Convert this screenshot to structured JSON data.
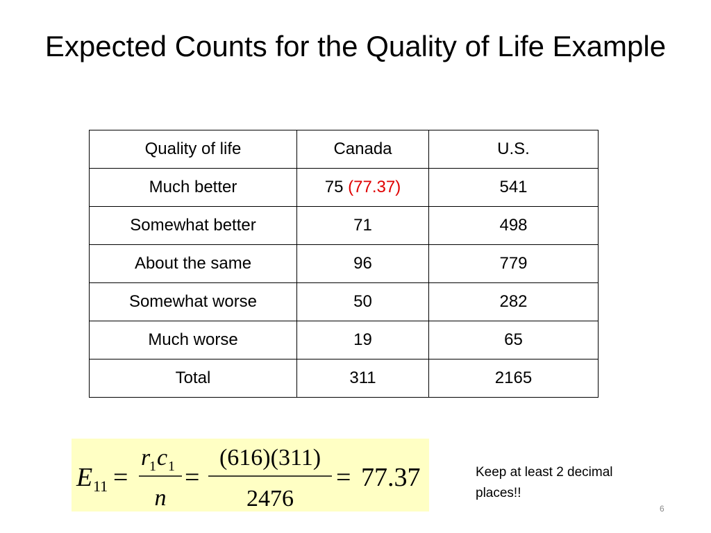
{
  "title": "Expected Counts for the Quality of Life Example",
  "table": {
    "header": [
      "Quality of life",
      "Canada",
      "U.S."
    ],
    "rows": [
      [
        {
          "count": "75",
          "expected": "(77.37)"
        },
        "541"
      ],
      [
        "71",
        "498"
      ],
      [
        "96",
        "779"
      ],
      [
        "50",
        "282"
      ],
      [
        "19",
        "65"
      ],
      [
        "311",
        "2165"
      ]
    ],
    "row_labels": [
      "Much better",
      "Somewhat better",
      "About the same",
      "Somewhat worse",
      "Much worse",
      "Total"
    ]
  },
  "formula": {
    "symbol": "E",
    "subscript": "11",
    "equals": "=",
    "r": "r",
    "r_sub": "1",
    "c": "c",
    "c_sub": "1",
    "n": "n",
    "numerator": "(616)(311)",
    "denominator": "2476",
    "result": "77.37"
  },
  "note": "Keep at least 2 decimal places!!",
  "page_number": "6"
}
